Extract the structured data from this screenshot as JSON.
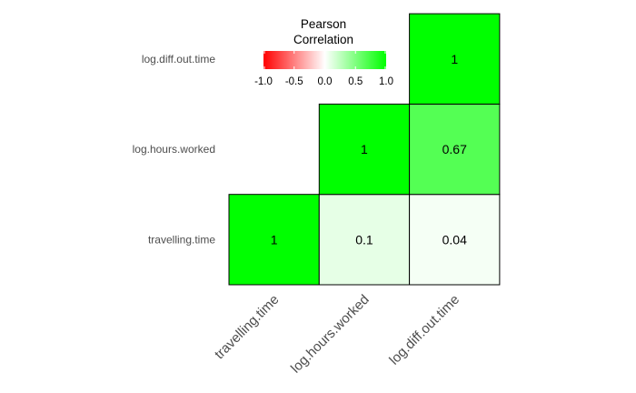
{
  "chart_data": {
    "type": "heatmap",
    "variables": [
      "travelling.time",
      "log.hours.worked",
      "log.diff.out.time"
    ],
    "matrix": [
      [
        1,
        0.1,
        0.04
      ],
      [
        0.1,
        1,
        0.67
      ],
      [
        0.04,
        0.67,
        1
      ]
    ],
    "cell_labels": [
      [
        "1",
        "0.1",
        "0.04"
      ],
      [
        "",
        "1",
        "0.67"
      ],
      [
        "",
        "",
        "1"
      ]
    ],
    "shown": "upper-triangle",
    "legend": {
      "title_lines": [
        "Pearson",
        "Correlation"
      ],
      "placement": "top",
      "limits": [
        -1,
        1
      ],
      "ticks": [
        "-1.0",
        "-0.5",
        "0.0",
        "0.5",
        "1.0"
      ],
      "colors": {
        "low": "#FF0000",
        "mid": "#FFFFFF",
        "high": "#00FF00"
      }
    },
    "colors": {
      "tile_border": "#000000",
      "tick_text": "#4d4d4d",
      "cell_text": "#000000"
    },
    "grid": false
  }
}
